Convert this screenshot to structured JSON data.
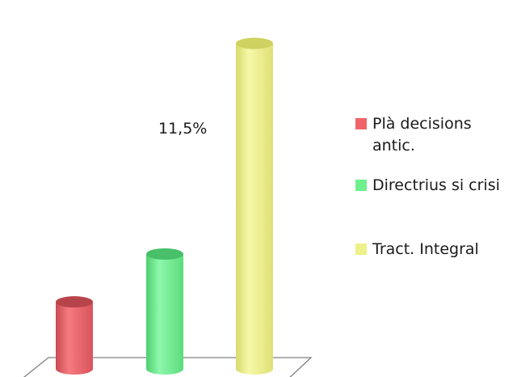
{
  "chart_data": {
    "type": "bar",
    "style": "3d-cylinder",
    "categories": [
      "Plà decisions antic.",
      "Directrius si crisi",
      "Tract. Integral"
    ],
    "values": [
      1.4,
      2.4,
      6.8
    ],
    "colors": [
      "#f0636a",
      "#6ff08f",
      "#eef08a"
    ],
    "annotations": [
      {
        "text": "11,5%"
      }
    ],
    "legend": {
      "position": "right",
      "items": [
        {
          "label": "Plà decisions antic.",
          "color": "#f0636a"
        },
        {
          "label": "Directrius si crisi",
          "color": "#6ff08f"
        },
        {
          "label": "Tract. Integral",
          "color": "#eef08a"
        }
      ]
    },
    "ylim": [
      0,
      7.2
    ],
    "grid": false
  }
}
